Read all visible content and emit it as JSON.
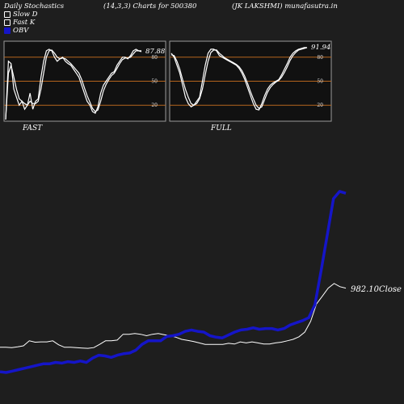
{
  "header": {
    "title": "Daily Stochastics",
    "params": "(14,3,3) Charts for 500380",
    "symbol": "(JK LAKSHMI) munafasutra.in"
  },
  "legend": {
    "slow_d": "Slow  D",
    "fast_k": "Fast K",
    "obv": "OBV"
  },
  "colors": {
    "background": "#1e1e1e",
    "panel": "#111111",
    "level_line": "#b5651d",
    "obv": "#1515c8",
    "price": "#ffffff"
  },
  "chart_data": [
    {
      "type": "line",
      "panel_label": "FAST",
      "last_value_label": "87.88",
      "y_ticks": [
        20,
        50,
        80
      ],
      "ylim": [
        0,
        100
      ],
      "levels": [
        20,
        50,
        80
      ],
      "series": [
        {
          "name": "Fast K",
          "values": [
            2,
            75,
            72,
            40,
            30,
            20,
            25,
            15,
            20,
            35,
            15,
            25,
            28,
            55,
            75,
            88,
            90,
            88,
            80,
            75,
            78,
            80,
            75,
            72,
            70,
            65,
            60,
            55,
            45,
            35,
            25,
            20,
            12,
            10,
            18,
            35,
            45,
            50,
            55,
            60,
            62,
            70,
            75,
            80,
            80,
            78,
            82,
            88,
            90,
            88,
            87
          ]
        },
        {
          "name": "Slow D",
          "values": [
            2,
            60,
            70,
            55,
            40,
            28,
            25,
            22,
            20,
            25,
            22,
            22,
            25,
            40,
            60,
            80,
            88,
            89,
            85,
            80,
            78,
            79,
            78,
            75,
            72,
            68,
            64,
            60,
            52,
            42,
            32,
            24,
            16,
            12,
            14,
            25,
            38,
            46,
            52,
            57,
            60,
            66,
            72,
            77,
            79,
            79,
            80,
            84,
            88,
            88,
            88
          ]
        }
      ]
    },
    {
      "type": "line",
      "panel_label": "FULL",
      "last_value_label": "91.94",
      "y_ticks": [
        20,
        50,
        80
      ],
      "ylim": [
        0,
        100
      ],
      "levels": [
        20,
        50,
        80
      ],
      "series": [
        {
          "name": "Fast K",
          "values": [
            85,
            80,
            70,
            60,
            45,
            30,
            22,
            18,
            20,
            25,
            30,
            50,
            70,
            85,
            90,
            90,
            88,
            82,
            80,
            78,
            76,
            74,
            72,
            70,
            66,
            60,
            52,
            42,
            32,
            22,
            15,
            14,
            22,
            32,
            40,
            45,
            48,
            50,
            52,
            58,
            65,
            72,
            80,
            85,
            88,
            90,
            91,
            92,
            92
          ]
        },
        {
          "name": "Slow D",
          "values": [
            83,
            82,
            75,
            65,
            52,
            40,
            30,
            22,
            20,
            22,
            28,
            40,
            58,
            75,
            86,
            89,
            89,
            85,
            82,
            79,
            77,
            75,
            73,
            71,
            68,
            63,
            56,
            47,
            37,
            28,
            20,
            16,
            18,
            27,
            36,
            42,
            46,
            49,
            51,
            55,
            61,
            68,
            76,
            82,
            86,
            89,
            90,
            91,
            92
          ]
        }
      ]
    },
    {
      "type": "line",
      "close_label": "982.10Close",
      "series": [
        {
          "name": "Close",
          "values": [
            548,
            548,
            547,
            549,
            552,
            566,
            562,
            563,
            563,
            566,
            555,
            548,
            548,
            547,
            546,
            545,
            547,
            556,
            566,
            566,
            568,
            584,
            584,
            586,
            584,
            580,
            584,
            586,
            583,
            580,
            576,
            570,
            567,
            564,
            560,
            556,
            556,
            556,
            556,
            559,
            557,
            563,
            560,
            563,
            560,
            557,
            557,
            560,
            562,
            566,
            570,
            577,
            590,
            620,
            668,
            690,
            712,
            725,
            716,
            712
          ]
        },
        {
          "name": "OBV",
          "values": [
            480,
            478,
            482,
            486,
            490,
            494,
            498,
            502,
            502,
            506,
            504,
            508,
            506,
            510,
            506,
            518,
            526,
            524,
            520,
            526,
            530,
            532,
            540,
            556,
            566,
            566,
            566,
            578,
            580,
            584,
            592,
            596,
            592,
            590,
            580,
            576,
            574,
            582,
            590,
            596,
            598,
            602,
            598,
            600,
            600,
            596,
            600,
            610,
            616,
            622,
            630,
            666,
            760,
            860,
            960,
            980,
            975
          ]
        }
      ]
    }
  ]
}
